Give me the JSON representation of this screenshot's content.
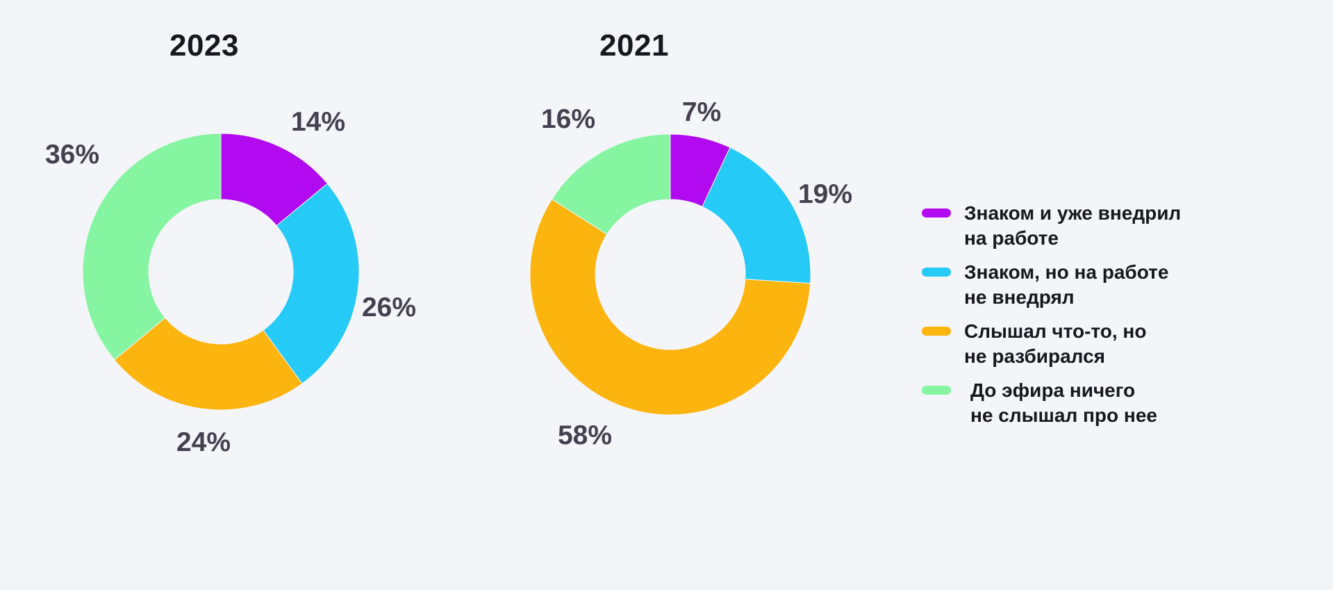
{
  "figure": {
    "background_color": "#F4F5F8",
    "title_color": "#17171F",
    "data_label_color": "#454050",
    "legend_text_color": "#17171F"
  },
  "chart_data": [
    {
      "type": "pie",
      "subtype": "donut",
      "title": "2023",
      "categories": [
        "Знаком и уже внедрил на работе",
        "Знаком, но на работе не внедрял",
        "Слышал что-то, но не разбирался",
        "До эфира ничего не слышал про нее"
      ],
      "values": [
        14,
        26,
        24,
        36
      ],
      "data_labels": [
        "14%",
        "26%",
        "24%",
        "36%"
      ],
      "unit": "%",
      "colors": [
        "#B109F0",
        "#25CAF7",
        "#FCB40E",
        "#86F5A2"
      ],
      "start_angle_deg": 0,
      "direction": "clockwise",
      "grid": false,
      "legend_position": "right"
    },
    {
      "type": "pie",
      "subtype": "donut",
      "title": "2021",
      "categories": [
        "Знаком и уже внедрил на работе",
        "Знаком, но на работе не внедрял",
        "Слышал что-то, но не разбирался",
        "До эфира ничего не слышал про нее"
      ],
      "values": [
        7,
        19,
        58,
        16
      ],
      "data_labels": [
        "7%",
        "19%",
        "58%",
        "16%"
      ],
      "unit": "%",
      "colors": [
        "#B109F0",
        "#25CAF7",
        "#FCB40E",
        "#86F5A2"
      ],
      "start_angle_deg": 0,
      "direction": "clockwise",
      "grid": false,
      "legend_position": "right"
    }
  ],
  "legend": {
    "items": [
      {
        "line1": "Знаком и уже внедрил",
        "line2": "на работе",
        "color": "#B109F0"
      },
      {
        "line1": "Знаком, но на работе",
        "line2": "не внедрял",
        "color": "#25CAF7"
      },
      {
        "line1": "Слышал что-то, но",
        "line2": "не разбирался",
        "color": "#FCB40E"
      },
      {
        "line1": "До эфира ничего",
        "line2": "не слышал про нее",
        "color": "#86F5A2"
      }
    ]
  }
}
